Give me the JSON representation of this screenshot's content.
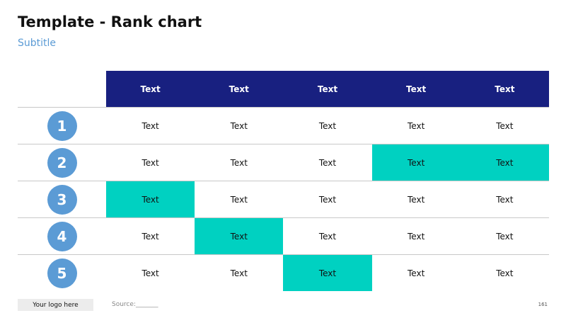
{
  "title": "Template - Rank chart",
  "subtitle": "Subtitle",
  "colors": {
    "header_bg": "#182080",
    "rank_circle": "#5b9bd5",
    "highlight": "#00d1c1",
    "subtitle": "#5b9bd5"
  },
  "table": {
    "headers": [
      "Text",
      "Text",
      "Text",
      "Text",
      "Text"
    ],
    "rows": [
      {
        "rank": "1",
        "cells": [
          {
            "text": "Text",
            "highlight": false
          },
          {
            "text": "Text",
            "highlight": false
          },
          {
            "text": "Text",
            "highlight": false
          },
          {
            "text": "Text",
            "highlight": false
          },
          {
            "text": "Text",
            "highlight": false
          }
        ]
      },
      {
        "rank": "2",
        "cells": [
          {
            "text": "Text",
            "highlight": false
          },
          {
            "text": "Text",
            "highlight": false
          },
          {
            "text": "Text",
            "highlight": false
          },
          {
            "text": "Text",
            "highlight": true
          },
          {
            "text": "Text",
            "highlight": true
          }
        ]
      },
      {
        "rank": "3",
        "cells": [
          {
            "text": "Text",
            "highlight": true
          },
          {
            "text": "Text",
            "highlight": false
          },
          {
            "text": "Text",
            "highlight": false
          },
          {
            "text": "Text",
            "highlight": false
          },
          {
            "text": "Text",
            "highlight": false
          }
        ]
      },
      {
        "rank": "4",
        "cells": [
          {
            "text": "Text",
            "highlight": false
          },
          {
            "text": "Text",
            "highlight": true
          },
          {
            "text": "Text",
            "highlight": false
          },
          {
            "text": "Text",
            "highlight": false
          },
          {
            "text": "Text",
            "highlight": false
          }
        ]
      },
      {
        "rank": "5",
        "cells": [
          {
            "text": "Text",
            "highlight": false
          },
          {
            "text": "Text",
            "highlight": false
          },
          {
            "text": "Text",
            "highlight": true
          },
          {
            "text": "Text",
            "highlight": false
          },
          {
            "text": "Text",
            "highlight": false
          }
        ]
      }
    ]
  },
  "footer": {
    "logo_text": "Your logo here",
    "source": "Source:_______",
    "page_number": "161"
  }
}
